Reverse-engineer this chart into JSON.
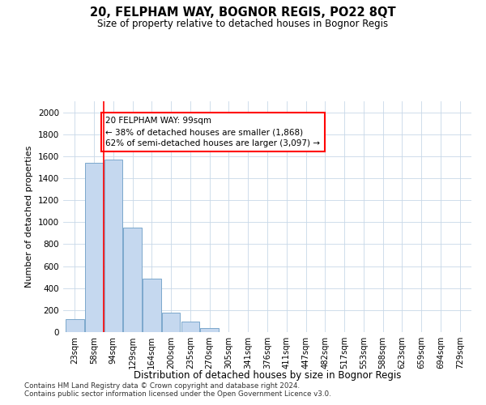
{
  "title": "20, FELPHAM WAY, BOGNOR REGIS, PO22 8QT",
  "subtitle": "Size of property relative to detached houses in Bognor Regis",
  "xlabel": "Distribution of detached houses by size in Bognor Regis",
  "ylabel": "Number of detached properties",
  "categories": [
    "23sqm",
    "58sqm",
    "94sqm",
    "129sqm",
    "164sqm",
    "200sqm",
    "235sqm",
    "270sqm",
    "305sqm",
    "341sqm",
    "376sqm",
    "411sqm",
    "447sqm",
    "482sqm",
    "517sqm",
    "553sqm",
    "588sqm",
    "623sqm",
    "659sqm",
    "694sqm",
    "729sqm"
  ],
  "values": [
    115,
    1540,
    1570,
    950,
    490,
    180,
    95,
    40,
    0,
    0,
    0,
    0,
    0,
    0,
    0,
    0,
    0,
    0,
    0,
    0,
    0
  ],
  "bar_color": "#c5d8ef",
  "bar_edge_color": "#7ba7cc",
  "red_line_x": 1.5,
  "annotation_line1": "20 FELPHAM WAY: 99sqm",
  "annotation_line2": "← 38% of detached houses are smaller (1,868)",
  "annotation_line3": "62% of semi-detached houses are larger (3,097) →",
  "ylim": [
    0,
    2100
  ],
  "yticks": [
    0,
    200,
    400,
    600,
    800,
    1000,
    1200,
    1400,
    1600,
    1800,
    2000
  ],
  "footer1": "Contains HM Land Registry data © Crown copyright and database right 2024.",
  "footer2": "Contains public sector information licensed under the Open Government Licence v3.0.",
  "background_color": "#ffffff",
  "grid_color": "#c8d8e8"
}
